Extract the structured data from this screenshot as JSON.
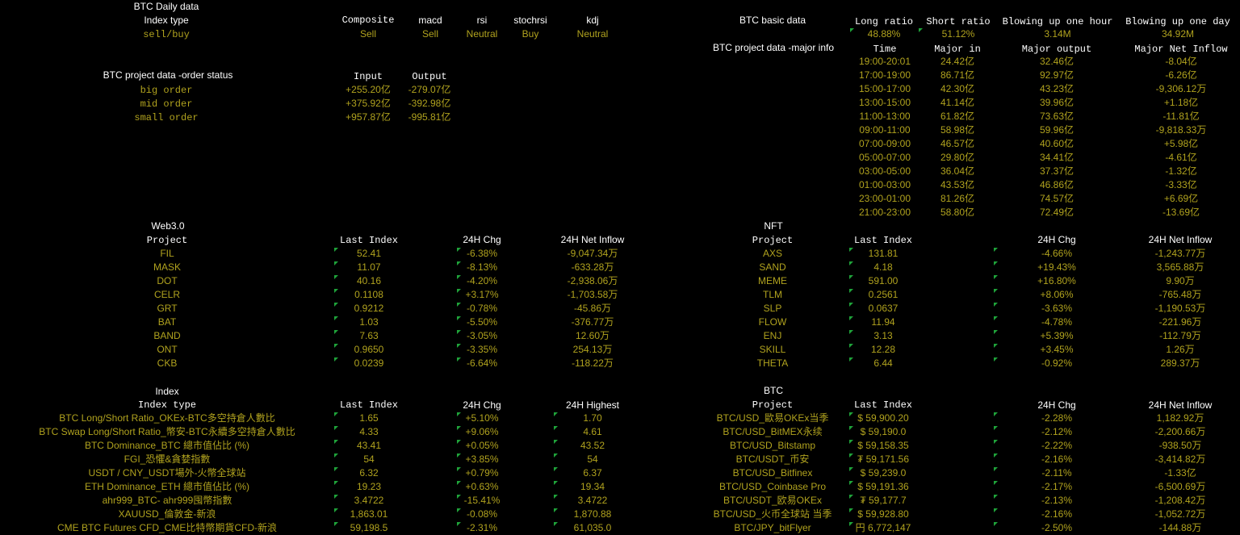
{
  "daily": {
    "title": "BTC Daily data",
    "row_label": "Index type",
    "signal_label": "sell/buy",
    "headers": [
      "Composite",
      "macd",
      "rsi",
      "stochrsi",
      "kdj"
    ],
    "values": [
      "Sell",
      "Sell",
      "Neutral",
      "Buy",
      "Neutral"
    ]
  },
  "orders": {
    "title": "BTC project data -order status",
    "headers": [
      "Input",
      "Output"
    ],
    "rows": [
      {
        "label": "big order",
        "input": "+255.20亿",
        "output": "-279.07亿"
      },
      {
        "label": "mid order",
        "input": "+375.92亿",
        "output": "-392.98亿"
      },
      {
        "label": "small order",
        "input": "+957.87亿",
        "output": "-995.81亿"
      }
    ]
  },
  "basic": {
    "title": "BTC basic data",
    "headers": [
      "Long ratio",
      "Short ratio",
      "Blowing up one hour",
      "Blowing up one day"
    ],
    "values": [
      "48.88%",
      "51.12%",
      "3.14M",
      "34.92M"
    ]
  },
  "major": {
    "title": "BTC project data -major info",
    "headers": [
      "Time",
      "Major in",
      "Major output",
      "Major Net Inflow"
    ],
    "rows": [
      [
        "19:00-20:01",
        "24.42亿",
        "32.46亿",
        "-8.04亿"
      ],
      [
        "17:00-19:00",
        "86.71亿",
        "92.97亿",
        "-6.26亿"
      ],
      [
        "15:00-17:00",
        "42.30亿",
        "43.23亿",
        "-9,306.12万"
      ],
      [
        "13:00-15:00",
        "41.14亿",
        "39.96亿",
        "+1.18亿"
      ],
      [
        "11:00-13:00",
        "61.82亿",
        "73.63亿",
        "-11.81亿"
      ],
      [
        "09:00-11:00",
        "58.98亿",
        "59.96亿",
        "-9,818.33万"
      ],
      [
        "07:00-09:00",
        "46.57亿",
        "40.60亿",
        "+5.98亿"
      ],
      [
        "05:00-07:00",
        "29.80亿",
        "34.41亿",
        "-4.61亿"
      ],
      [
        "03:00-05:00",
        "36.04亿",
        "37.37亿",
        "-1.32亿"
      ],
      [
        "01:00-03:00",
        "43.53亿",
        "46.86亿",
        "-3.33亿"
      ],
      [
        "23:00-01:00",
        "81.26亿",
        "74.57亿",
        "+6.69亿"
      ],
      [
        "21:00-23:00",
        "58.80亿",
        "72.49亿",
        "-13.69亿"
      ]
    ]
  },
  "web3": {
    "title": "Web3.0",
    "headers": [
      "Project",
      "Last Index",
      "24H Chg",
      "24H Net Inflow"
    ],
    "rows": [
      [
        "FIL",
        "52.41",
        "-6.38%",
        "-9,047.34万"
      ],
      [
        "MASK",
        "11.07",
        "-8.13%",
        "-633.28万"
      ],
      [
        "DOT",
        "40.16",
        "-4.20%",
        "-2,938.06万"
      ],
      [
        "CELR",
        "0.1108",
        "+3.17%",
        "-1,703.58万"
      ],
      [
        "GRT",
        "0.9212",
        "-0.78%",
        "-45.86万"
      ],
      [
        "BAT",
        "1.03",
        "-5.50%",
        "-376.77万"
      ],
      [
        "BAND",
        "7.63",
        "-3.05%",
        "12.60万"
      ],
      [
        "ONT",
        "0.9650",
        "-3.35%",
        "254.13万"
      ],
      [
        "CKB",
        "0.0239",
        "-6.64%",
        "-118.22万"
      ]
    ]
  },
  "nft": {
    "title": "NFT",
    "headers": [
      "Project",
      "Last Index",
      "24H Chg",
      "24H Net Inflow"
    ],
    "rows": [
      [
        "AXS",
        "131.81",
        "-4.66%",
        "-1,243.77万"
      ],
      [
        "SAND",
        "4.18",
        "+19.43%",
        "3,565.88万"
      ],
      [
        "MEME",
        "591.00",
        "+16.80%",
        "9.90万"
      ],
      [
        "TLM",
        "0.2561",
        "+8.06%",
        "-765.48万"
      ],
      [
        "SLP",
        "0.0637",
        "-3.63%",
        "-1,190.53万"
      ],
      [
        "FLOW",
        "11.94",
        "-4.78%",
        "-221.96万"
      ],
      [
        "ENJ",
        "3.13",
        "+5.39%",
        "-112.79万"
      ],
      [
        "SKILL",
        "12.28",
        "+3.45%",
        "1.26万"
      ],
      [
        "THETA",
        "6.44",
        "-0.92%",
        "289.37万"
      ]
    ]
  },
  "index": {
    "title": "Index",
    "headers": [
      "Index type",
      "Last Index",
      "24H Chg",
      "24H Highest"
    ],
    "rows": [
      [
        "BTC Long/Short Ratio_OKEx-BTC多空持倉人數比",
        "1.65",
        "+5.10%",
        "1.70"
      ],
      [
        "BTC Swap Long/Short Ratio_幣安-BTC永續多空持倉人數比",
        "4.33",
        "+9.06%",
        "4.61"
      ],
      [
        "BTC Dominance_BTC 總市值佔比 (%)",
        "43.41",
        "+0.05%",
        "43.52"
      ],
      [
        "FGI_恐懼&貪婪指數",
        "54",
        "+3.85%",
        "54"
      ],
      [
        "USDT / CNY_USDT場外-火幣全球站",
        "6.32",
        "+0.79%",
        "6.37"
      ],
      [
        "ETH Dominance_ETH 總市值佔比 (%)",
        "19.23",
        "+0.63%",
        "19.34"
      ],
      [
        "ahr999_BTC- ahr999囤幣指數",
        "3.4722",
        "-15.41%",
        "3.4722"
      ],
      [
        "XAUUSD_倫敦金-新浪",
        "1,863.01",
        "-0.08%",
        "1,870.88"
      ],
      [
        "CME BTC Futures CFD_CME比特幣期貨CFD-新浪",
        "59,198.5",
        "-2.31%",
        "61,035.0"
      ]
    ]
  },
  "btc": {
    "title": "BTC",
    "headers": [
      "Project",
      "Last Index",
      "24H Chg",
      "24H Net Inflow"
    ],
    "rows": [
      [
        "BTC/USD_歐易OKEx当季",
        "$ 59,900.20",
        "-2.28%",
        "1,182.92万"
      ],
      [
        "BTC/USD_BitMEX永续",
        "$ 59,190.0",
        "-2.12%",
        "-2,200.66万"
      ],
      [
        "BTC/USD_Bitstamp",
        "$ 59,158.35",
        "-2.22%",
        "-938.50万"
      ],
      [
        "BTC/USDT_币安",
        "₮ 59,171.56",
        "-2.16%",
        "-3,414.82万"
      ],
      [
        "BTC/USD_Bitfinex",
        "$ 59,239.0",
        "-2.11%",
        "-1.33亿"
      ],
      [
        "BTC/USD_Coinbase Pro",
        "$ 59,191.36",
        "-2.17%",
        "-6,500.69万"
      ],
      [
        "BTC/USDT_欧易OKEx",
        "₮ 59,177.7",
        "-2.13%",
        "-1,208.42万"
      ],
      [
        "BTC/USD_火币全球站 当季",
        "$ 59,928.80",
        "-2.16%",
        "-1,052.72万"
      ],
      [
        "BTC/JPY_bitFlyer",
        "円 6,772,147",
        "-2.50%",
        "-144.88万"
      ]
    ]
  }
}
